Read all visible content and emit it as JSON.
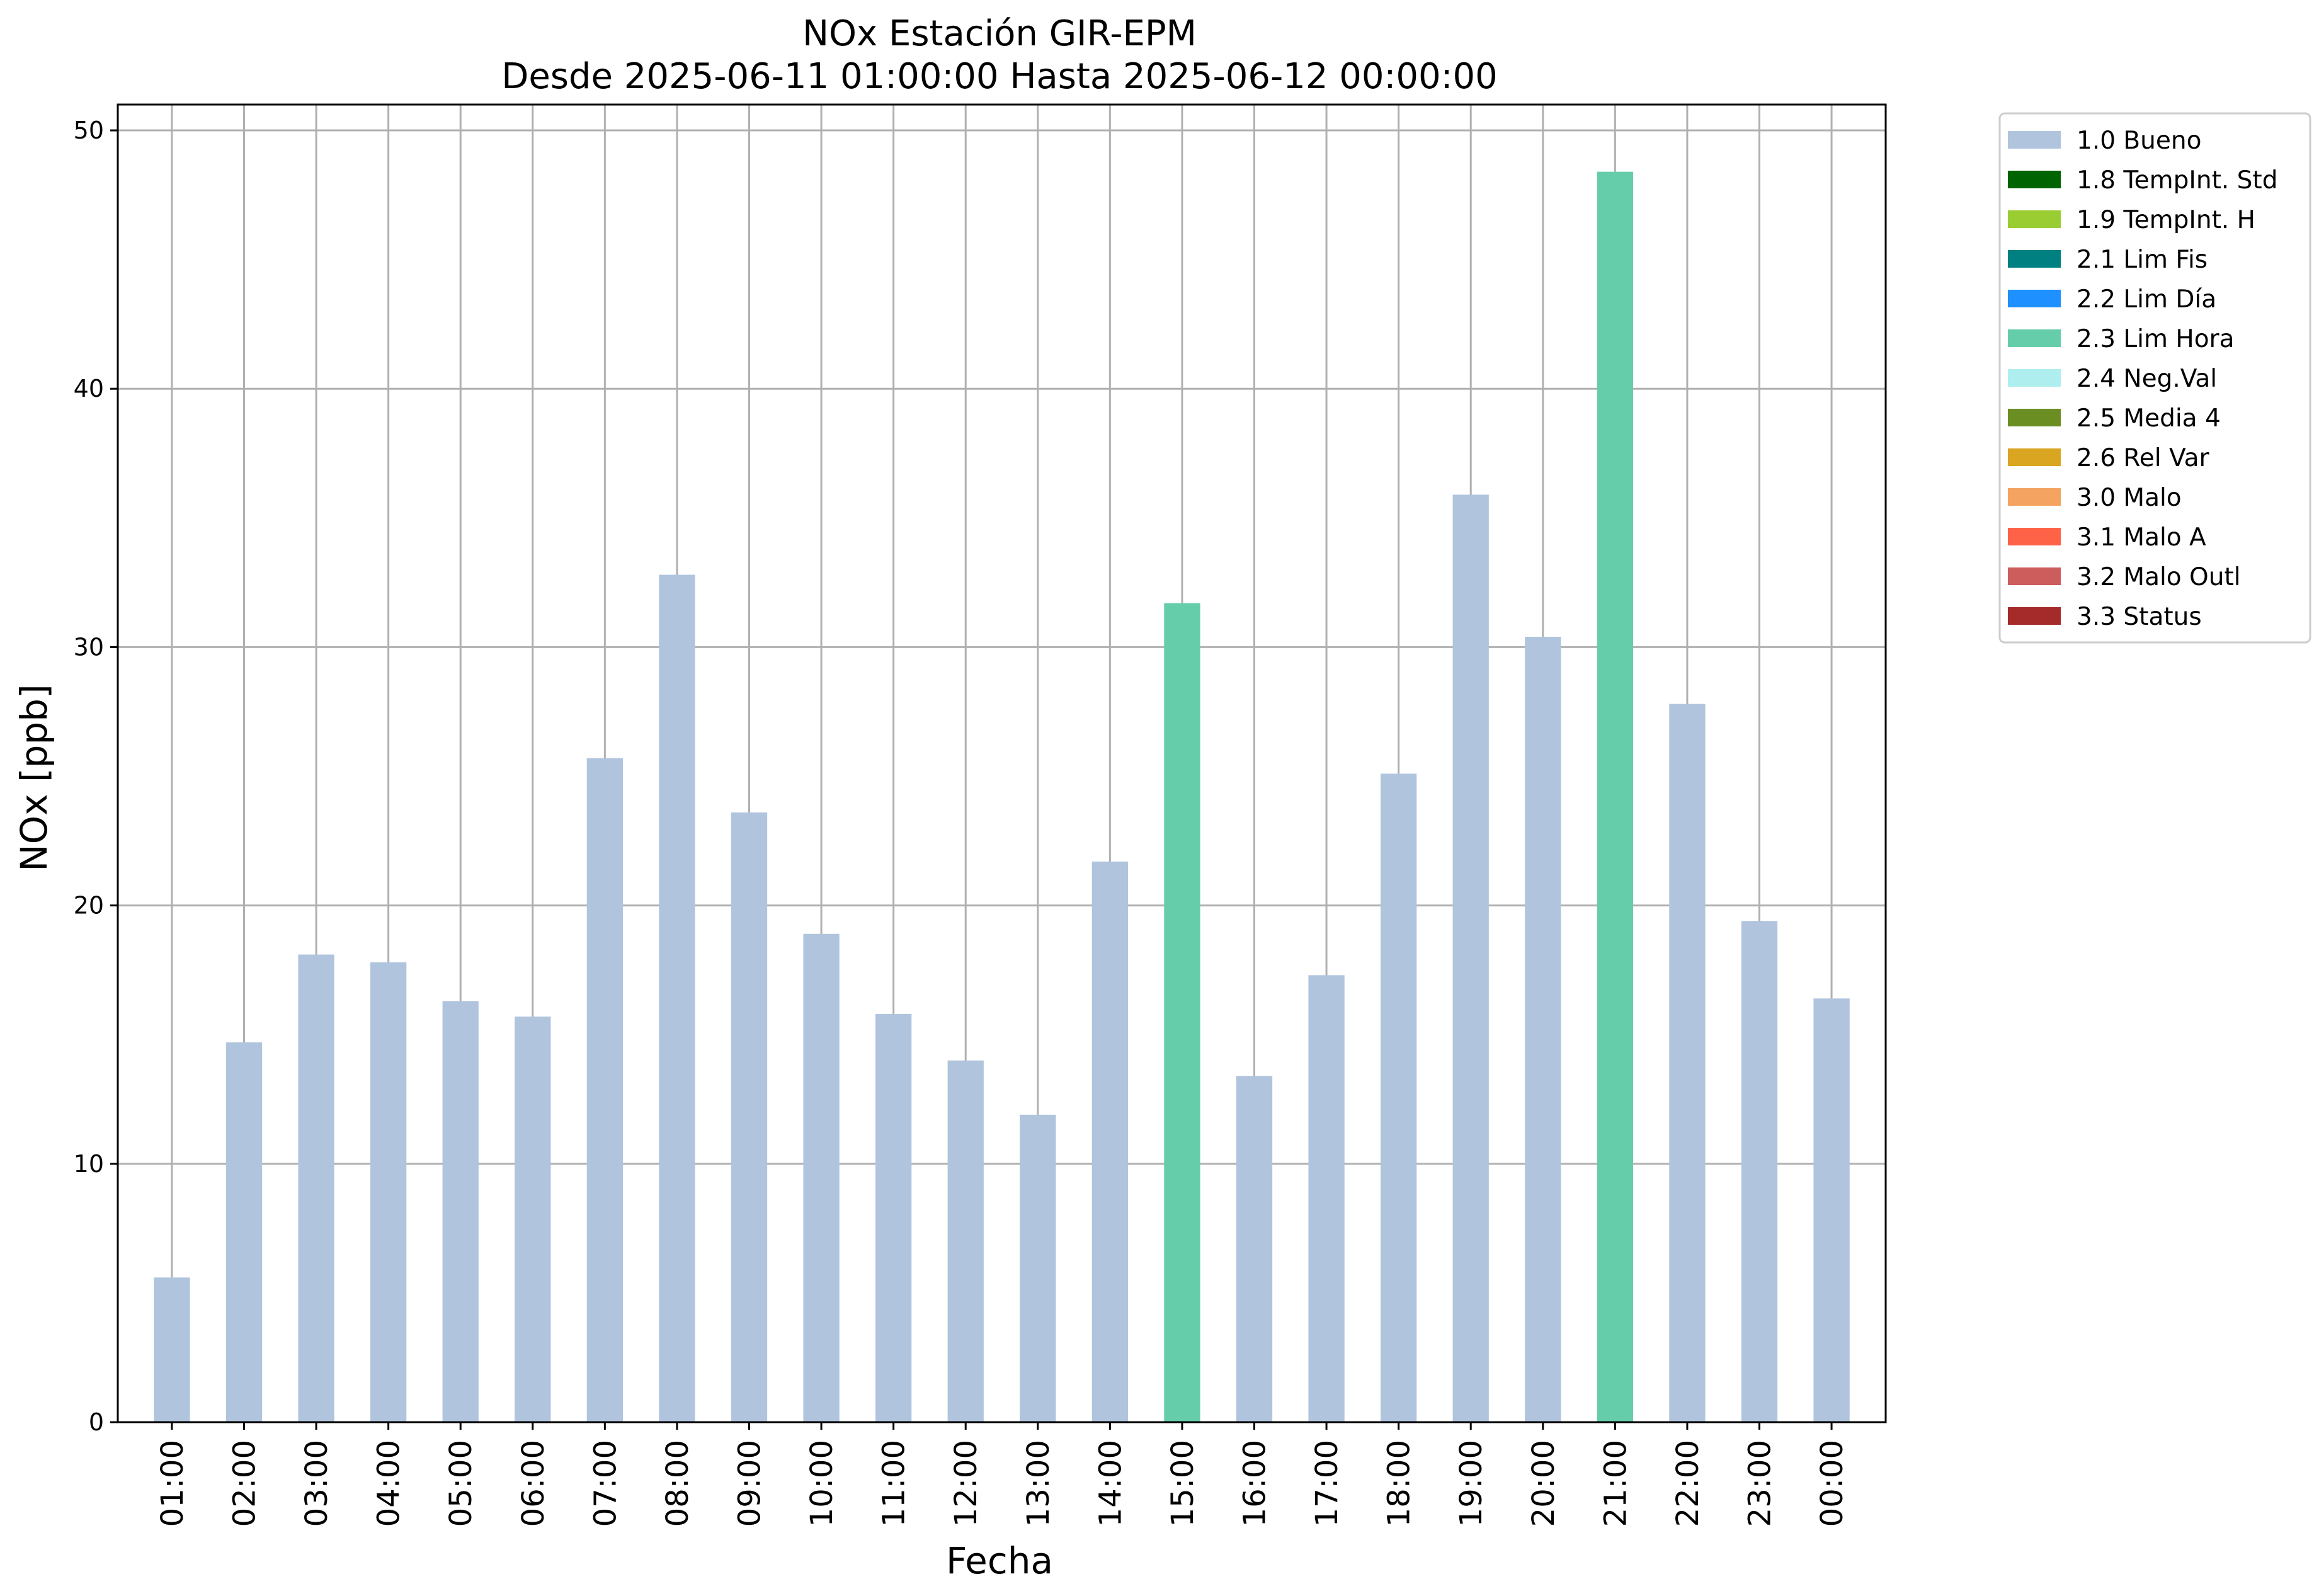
{
  "chart_data": {
    "type": "bar",
    "title": "NOx Estación GIR-EPM",
    "subtitle": "Desde 2025-06-11 01:00:00 Hasta 2025-06-12 00:00:00",
    "xlabel": "Fecha",
    "ylabel": "NOx [ppb]",
    "ylim": [
      0,
      51
    ],
    "yticks": [
      0,
      10,
      20,
      30,
      40,
      50
    ],
    "grid": true,
    "legend_position": "outside-top-right",
    "categories": [
      "01:00",
      "02:00",
      "03:00",
      "04:00",
      "05:00",
      "06:00",
      "07:00",
      "08:00",
      "09:00",
      "10:00",
      "11:00",
      "12:00",
      "13:00",
      "14:00",
      "15:00",
      "16:00",
      "17:00",
      "18:00",
      "19:00",
      "20:00",
      "21:00",
      "22:00",
      "23:00",
      "00:00"
    ],
    "values": [
      5.6,
      14.7,
      18.1,
      17.8,
      16.3,
      15.7,
      25.7,
      32.8,
      23.6,
      18.9,
      15.8,
      14.0,
      11.9,
      21.7,
      31.7,
      13.4,
      17.3,
      25.1,
      35.9,
      30.4,
      48.4,
      27.8,
      19.4,
      16.4
    ],
    "flags": [
      "1.0 Bueno",
      "1.0 Bueno",
      "1.0 Bueno",
      "1.0 Bueno",
      "1.0 Bueno",
      "1.0 Bueno",
      "1.0 Bueno",
      "1.0 Bueno",
      "1.0 Bueno",
      "1.0 Bueno",
      "1.0 Bueno",
      "1.0 Bueno",
      "1.0 Bueno",
      "1.0 Bueno",
      "2.3 Lim Hora",
      "1.0 Bueno",
      "1.0 Bueno",
      "1.0 Bueno",
      "1.0 Bueno",
      "1.0 Bueno",
      "2.3 Lim Hora",
      "1.0 Bueno",
      "1.0 Bueno",
      "1.0 Bueno"
    ],
    "legend": [
      {
        "label": "1.0 Bueno",
        "color": "#b0c4de"
      },
      {
        "label": "1.8 TempInt. Std",
        "color": "#006400"
      },
      {
        "label": "1.9 TempInt. H",
        "color": "#9acd32"
      },
      {
        "label": "2.1 Lim Fis",
        "color": "#008080"
      },
      {
        "label": "2.2 Lim Día",
        "color": "#1e90ff"
      },
      {
        "label": "2.3 Lim Hora",
        "color": "#66cdaa"
      },
      {
        "label": "2.4 Neg.Val",
        "color": "#afeeee"
      },
      {
        "label": "2.5 Media 4",
        "color": "#6b8e23"
      },
      {
        "label": "2.6 Rel Var",
        "color": "#daa520"
      },
      {
        "label": "3.0 Malo",
        "color": "#f4a460"
      },
      {
        "label": "3.1 Malo A",
        "color": "#ff6347"
      },
      {
        "label": "3.2 Malo Outl",
        "color": "#cd5c5c"
      },
      {
        "label": "3.3 Status",
        "color": "#a52a2a"
      }
    ]
  }
}
